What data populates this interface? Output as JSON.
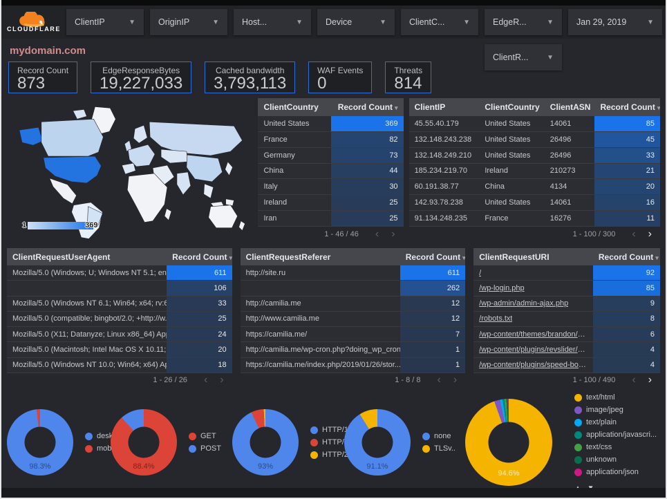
{
  "header": {
    "brand": "CLOUDFLARE",
    "filters": [
      {
        "label": "ClientIP"
      },
      {
        "label": "OriginIP"
      },
      {
        "label": "Host..."
      },
      {
        "label": "Device"
      },
      {
        "label": "ClientC..."
      },
      {
        "label": "EdgeR..."
      },
      {
        "label": "Jan 29, 2019",
        "date": true
      }
    ],
    "filter_row2": {
      "label": "ClientR..."
    }
  },
  "title": "mydomain.com",
  "scorecards": [
    {
      "label": "Record Count",
      "value": "873"
    },
    {
      "label": "EdgeResponseBytes",
      "value": "19,227,033"
    },
    {
      "label": "Cached bandwidth",
      "value": "3,793,113"
    },
    {
      "label": "WAF Events",
      "value": "0"
    },
    {
      "label": "Threats",
      "value": "814"
    }
  ],
  "map": {
    "metric": "Record Count",
    "legend_min": "1",
    "legend_max": "369",
    "highlight_country": "United States"
  },
  "tables": [
    {
      "id": "client-country",
      "columns": [
        {
          "label": "ClientCountry",
          "width": "50%"
        },
        {
          "label": "Record Count",
          "width": "50%",
          "numeric": true,
          "sort": true
        }
      ],
      "rows": [
        [
          "United States",
          369
        ],
        [
          "France",
          82
        ],
        [
          "Germany",
          73
        ],
        [
          "China",
          44
        ],
        [
          "Italy",
          30
        ],
        [
          "Ireland",
          25
        ],
        [
          "Iran",
          25
        ]
      ],
      "max": 369,
      "pagination": {
        "label": "1 - 46 / 46",
        "prev_active": false,
        "next_active": false
      }
    },
    {
      "id": "client-ip",
      "columns": [
        {
          "label": "ClientIP",
          "width": "28%"
        },
        {
          "label": "ClientCountry",
          "width": "26%"
        },
        {
          "label": "ClientASN",
          "width": "20%"
        },
        {
          "label": "Record Count",
          "width": "26%",
          "numeric": true,
          "sort": true
        }
      ],
      "rows": [
        [
          "45.55.40.179",
          "United States",
          "14061",
          85
        ],
        [
          "132.148.243.238",
          "United States",
          "26496",
          45
        ],
        [
          "132.148.249.210",
          "United States",
          "26496",
          33
        ],
        [
          "185.234.219.70",
          "Ireland",
          "210273",
          21
        ],
        [
          "60.191.38.77",
          "China",
          "4134",
          20
        ],
        [
          "142.93.78.238",
          "United States",
          "14061",
          16
        ],
        [
          "91.134.248.235",
          "France",
          "16276",
          11
        ]
      ],
      "max": 85,
      "pagination": {
        "label": "1 - 100 / 300",
        "prev_active": false,
        "next_active": true
      }
    },
    {
      "id": "user-agent",
      "columns": [
        {
          "label": "ClientRequestUserAgent",
          "width": "71%"
        },
        {
          "label": "Record Count",
          "width": "29%",
          "numeric": true,
          "sort": true
        }
      ],
      "rows": [
        [
          "Mozilla/5.0 (Windows; U; Windows NT 5.1; en-U...",
          611
        ],
        [
          "",
          106
        ],
        [
          "Mozilla/5.0 (Windows NT 6.1; Win64; x64; rv:64...",
          33
        ],
        [
          "Mozilla/5.0 (compatible; bingbot/2.0; +http://w...",
          25
        ],
        [
          "Mozilla/5.0 (X11; Datanyze; Linux x86_64) Appl...",
          24
        ],
        [
          "Mozilla/5.0 (Macintosh; Intel Mac OS X 10.11; r...",
          20
        ],
        [
          "Mozilla/5.0 (Windows NT 10.0; Win64; x64) App...",
          18
        ]
      ],
      "max": 611,
      "pagination": {
        "label": "1 - 26 / 26",
        "prev_active": false,
        "next_active": false
      }
    },
    {
      "id": "referer",
      "columns": [
        {
          "label": "ClientRequestReferer",
          "width": "71%"
        },
        {
          "label": "Record Count",
          "width": "29%",
          "numeric": true,
          "sort": true
        }
      ],
      "rows": [
        [
          "http://site.ru",
          611
        ],
        [
          "",
          262
        ],
        [
          "http://camilia.me",
          12
        ],
        [
          "http://www.camilia.me",
          12
        ],
        [
          "https://camilia.me/",
          7
        ],
        [
          "http://camilia.me/wp-cron.php?doing_wp_cron...",
          1
        ],
        [
          "https://camilia.me/index.php/2019/01/26/stor...",
          1
        ]
      ],
      "max": 611,
      "pagination": {
        "label": "1 - 8 / 8",
        "prev_active": false,
        "next_active": false
      }
    },
    {
      "id": "uri",
      "links": true,
      "columns": [
        {
          "label": "ClientRequestURI",
          "width": "64%"
        },
        {
          "label": "Record Count",
          "width": "36%",
          "numeric": true,
          "sort": true
        }
      ],
      "rows": [
        [
          "/",
          92
        ],
        [
          "/wp-login.php",
          85
        ],
        [
          "/wp-admin/admin-ajax.php",
          9
        ],
        [
          "/robots.txt",
          8
        ],
        [
          "/wp-content/themes/brandon/plu...",
          6
        ],
        [
          "/wp-content/plugins/revslider/rs-p...",
          4
        ],
        [
          "/wp-content/plugins/speed-booste...",
          4
        ]
      ],
      "max": 92,
      "pagination": {
        "label": "1 - 100 / 490",
        "prev_active": false,
        "next_active": true
      }
    }
  ],
  "chart_data": [
    {
      "type": "pie",
      "id": "device",
      "size": 96,
      "block": "b1",
      "center_label": "98.3%",
      "slices": [
        {
          "name": "deskt...",
          "pct": 98.3,
          "color": "#4e86ec"
        },
        {
          "name": "mobile",
          "pct": 1.7,
          "color": "#db4437"
        }
      ]
    },
    {
      "type": "pie",
      "id": "method",
      "size": 96,
      "block": "b2",
      "center_label": "88.4%",
      "slices": [
        {
          "name": "GET",
          "pct": 88.4,
          "color": "#db4437"
        },
        {
          "name": "POST",
          "pct": 11.6,
          "color": "#4e86ec"
        }
      ]
    },
    {
      "type": "pie",
      "id": "http-version",
      "size": 96,
      "block": "b3",
      "center_label": "93%",
      "slices": [
        {
          "name": "HTTP/1.1",
          "pct": 93,
          "color": "#4e86ec"
        },
        {
          "name": "HTTP/1.0",
          "pct": 6.2,
          "color": "#db4437"
        },
        {
          "name": "HTTP/2",
          "pct": 0.8,
          "color": "#f4b400"
        }
      ]
    },
    {
      "type": "pie",
      "id": "tls",
      "size": 96,
      "block": "b4",
      "center_label": "91.1%",
      "slices": [
        {
          "name": "none",
          "pct": 91.1,
          "color": "#4e86ec"
        },
        {
          "name": "TLSv..",
          "pct": 8.9,
          "color": "#f4b400"
        }
      ]
    },
    {
      "type": "pie",
      "id": "content-type",
      "size": 126,
      "block": "b5",
      "center_label": "94.6%",
      "scroll_arrows": "▲ ▼",
      "slices": [
        {
          "name": "text/html",
          "pct": 94.6,
          "color": "#f4b400"
        },
        {
          "name": "image/jpeg",
          "pct": 2.2,
          "color": "#7e57c2"
        },
        {
          "name": "text/plain",
          "pct": 0.9,
          "color": "#03a9f4"
        },
        {
          "name": "application/javascri...",
          "pct": 0.8,
          "color": "#00897b"
        },
        {
          "name": "text/css",
          "pct": 0.6,
          "color": "#43a047"
        },
        {
          "name": "unknown",
          "pct": 0.5,
          "color": "#0b6e4e"
        },
        {
          "name": "application/json",
          "pct": 0.4,
          "color": "#d01884"
        }
      ]
    }
  ],
  "colors": {
    "accent_blue": "#1a73e8",
    "heat_base": "26,115,232",
    "card_border": "#2d6fd9"
  }
}
